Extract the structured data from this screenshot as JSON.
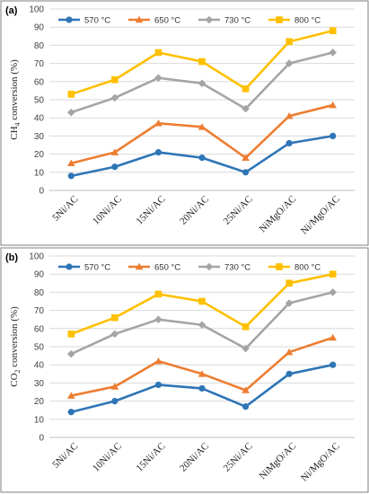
{
  "colors": {
    "570": "#2E75B6",
    "650": "#ED7D31",
    "730": "#A5A5A5",
    "800": "#FFC000",
    "grid": "#D9D9D9",
    "frame": "#7F7F7F"
  },
  "chart_data": [
    {
      "type": "line",
      "panel_label": "(a)",
      "ylabel_parts": [
        "CH",
        "4",
        " conversion (%)"
      ],
      "categories": [
        "5Ni/AC",
        "10Ni/AC",
        "15Ni/AC",
        "20Ni/AC",
        "25Ni/AC",
        "NiMgO/AC",
        "Ni/MgO/AC"
      ],
      "ylim": [
        0,
        100
      ],
      "yticks": [
        0,
        10,
        20,
        30,
        40,
        50,
        60,
        70,
        80,
        90,
        100
      ],
      "grid": true,
      "legend_position": "top",
      "series": [
        {
          "name": "570 °C",
          "key": "570",
          "marker": "circle",
          "values": [
            8,
            13,
            21,
            18,
            10,
            26,
            30
          ]
        },
        {
          "name": "650 °C",
          "key": "650",
          "marker": "triangle",
          "values": [
            15,
            21,
            37,
            35,
            18,
            41,
            47
          ]
        },
        {
          "name": "730 °C",
          "key": "730",
          "marker": "diamond",
          "values": [
            43,
            51,
            62,
            59,
            45,
            70,
            76
          ]
        },
        {
          "name": "800 °C",
          "key": "800",
          "marker": "square",
          "values": [
            53,
            61,
            76,
            71,
            56,
            82,
            88
          ]
        }
      ]
    },
    {
      "type": "line",
      "panel_label": "(b)",
      "ylabel_parts": [
        "CO",
        "2",
        " conversion (%)"
      ],
      "categories": [
        "5Ni/AC",
        "10Ni/AC",
        "15Ni/AC",
        "20Ni/AC",
        "25Ni/AC",
        "NiMgO/AC",
        "Ni/MgO/AC"
      ],
      "ylim": [
        0,
        100
      ],
      "yticks": [
        0,
        10,
        20,
        30,
        40,
        50,
        60,
        70,
        80,
        90,
        100
      ],
      "grid": true,
      "legend_position": "top",
      "series": [
        {
          "name": "570 °C",
          "key": "570",
          "marker": "circle",
          "values": [
            14,
            20,
            29,
            27,
            17,
            35,
            40
          ]
        },
        {
          "name": "650 °C",
          "key": "650",
          "marker": "triangle",
          "values": [
            23,
            28,
            42,
            35,
            26,
            47,
            55
          ]
        },
        {
          "name": "730 °C",
          "key": "730",
          "marker": "diamond",
          "values": [
            46,
            57,
            65,
            62,
            49,
            74,
            80
          ]
        },
        {
          "name": "800 °C",
          "key": "800",
          "marker": "square",
          "values": [
            57,
            66,
            79,
            75,
            61,
            85,
            90
          ]
        }
      ]
    }
  ]
}
